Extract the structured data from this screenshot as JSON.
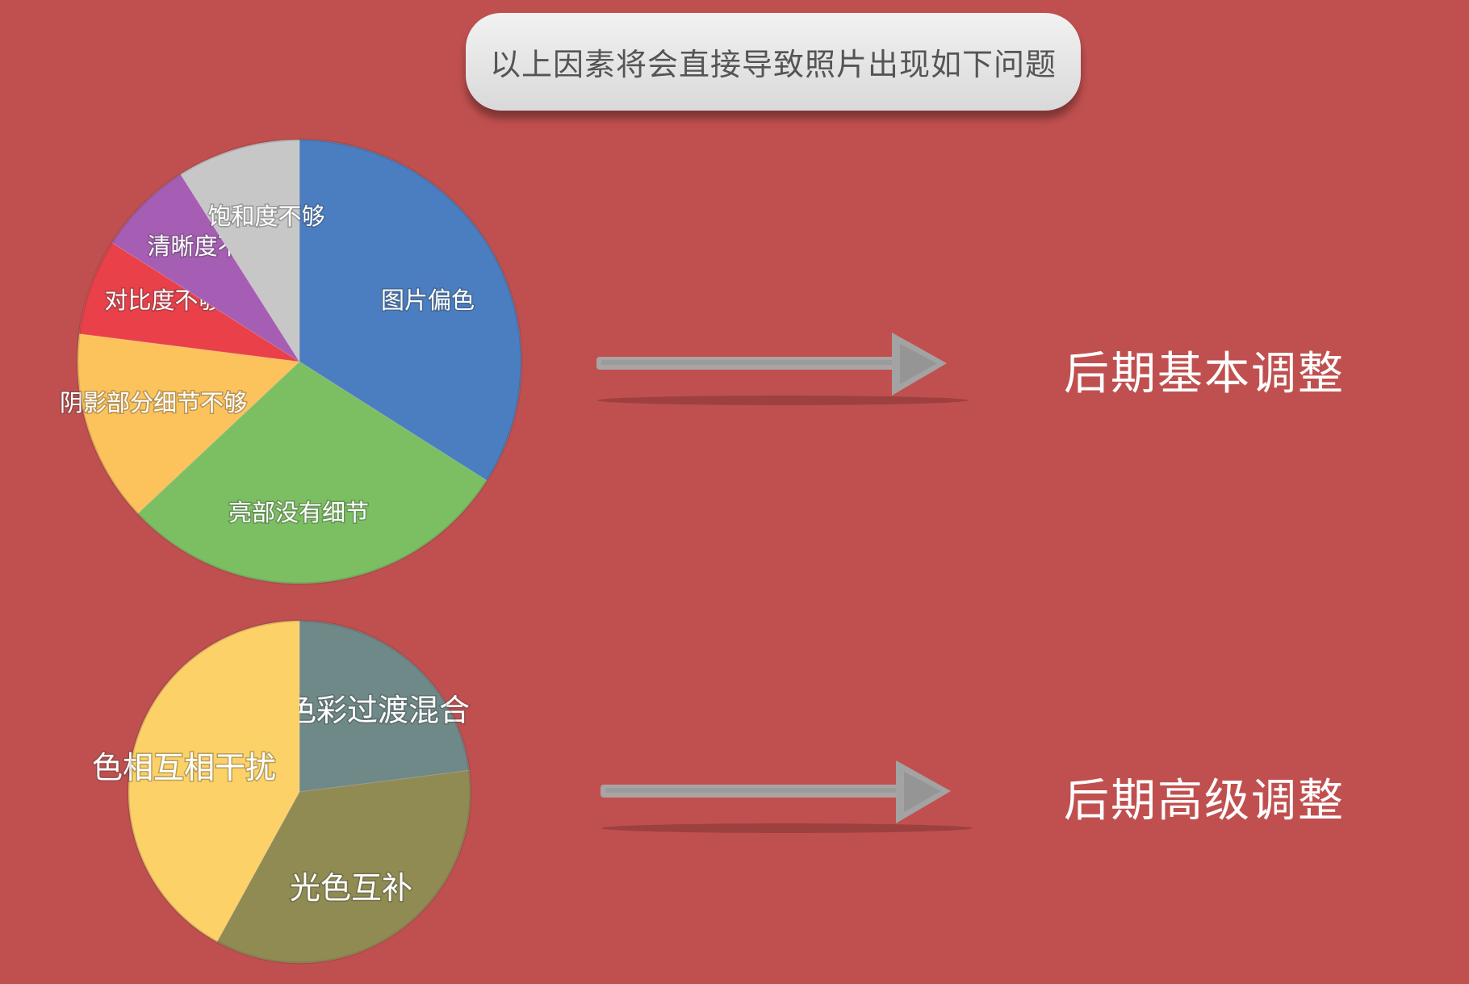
{
  "header": {
    "title": "以上因素将会直接导致照片出现如下问题"
  },
  "results": {
    "basic": "后期基本调整",
    "advanced": "后期高级调整"
  },
  "chart_data": [
    {
      "type": "pie",
      "start_angle": 0,
      "direction": "clockwise",
      "slices": [
        {
          "label": "图片偏色",
          "value": 34,
          "color": "#4a7ec1"
        },
        {
          "label": "亮部没有细节",
          "value": 29,
          "color": "#7cbf63"
        },
        {
          "label": "阴影部分细节不够",
          "value": 14,
          "color": "#fcc25c"
        },
        {
          "label": "对比度不够",
          "value": 7,
          "color": "#e9404a"
        },
        {
          "label": "清晰度不够",
          "value": 7,
          "color": "#a65eb4"
        },
        {
          "label": "饱和度不够",
          "value": 9,
          "color": "#c7c7c7"
        }
      ]
    },
    {
      "type": "pie",
      "start_angle": 0,
      "direction": "clockwise",
      "slices": [
        {
          "label": "色彩过渡混合",
          "value": 23,
          "color": "#6f8888"
        },
        {
          "label": "光色互补",
          "value": 35,
          "color": "#8f8b52"
        },
        {
          "label": "色相互相干扰",
          "value": 42,
          "color": "#fcd268"
        }
      ]
    }
  ],
  "icons": {
    "arrow": "chalk-arrow-right-icon"
  }
}
